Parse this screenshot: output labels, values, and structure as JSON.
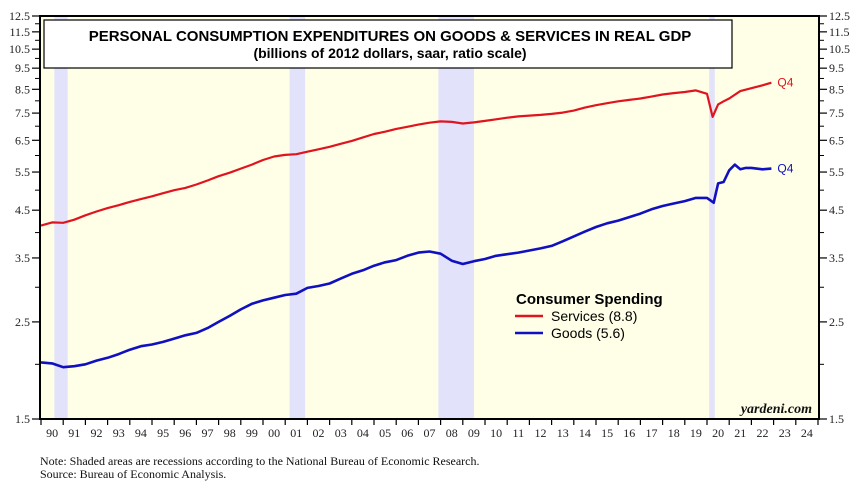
{
  "chart_data": {
    "type": "line",
    "title": "PERSONAL CONSUMPTION EXPENDITURES ON GOODS & SERVICES IN REAL GDP",
    "subtitle": "(billions of 2012 dollars, saar, ratio scale)",
    "xlabel": "",
    "ylabel": "",
    "y_scale": "log",
    "ylim": [
      1.5,
      12.5
    ],
    "xlim": [
      1990,
      2025
    ],
    "y_ticks": [
      "1.5",
      "2.5",
      "3.5",
      "4.5",
      "5.5",
      "6.5",
      "7.5",
      "8.5",
      "9.5",
      "10.5",
      "11.5",
      "12.5"
    ],
    "y_tick_values": [
      1.5,
      2.5,
      3.5,
      4.5,
      5.5,
      6.5,
      7.5,
      8.5,
      9.5,
      10.5,
      11.5,
      12.5
    ],
    "y_minor_ticks": [
      2.0,
      3.0,
      4.0,
      5.0,
      6.0,
      7.0,
      8.0,
      9.0,
      10.0,
      11.0,
      12.0
    ],
    "x_tick_labels": [
      "90",
      "91",
      "92",
      "93",
      "94",
      "95",
      "96",
      "97",
      "98",
      "99",
      "00",
      "01",
      "02",
      "03",
      "04",
      "05",
      "06",
      "07",
      "08",
      "09",
      "10",
      "11",
      "12",
      "13",
      "14",
      "15",
      "16",
      "17",
      "18",
      "19",
      "20",
      "21",
      "22",
      "23",
      "24"
    ],
    "recessions": [
      [
        1990.6,
        1991.2
      ],
      [
        2001.2,
        2001.9
      ],
      [
        2007.9,
        2009.5
      ],
      [
        2020.1,
        2020.35
      ]
    ],
    "grid": false,
    "legend": {
      "title": "Consumer Spending",
      "position": "center-right",
      "entries": [
        "Services (8.8)",
        "Goods (5.6)"
      ]
    },
    "series": [
      {
        "name": "Services (8.8)",
        "color": "#e0141e",
        "end_label": "Q4",
        "x": [
          1990.0,
          1990.5,
          1991.0,
          1991.5,
          1992.0,
          1992.5,
          1993.0,
          1993.5,
          1994.0,
          1994.5,
          1995.0,
          1995.5,
          1996.0,
          1996.5,
          1997.0,
          1997.5,
          1998.0,
          1998.5,
          1999.0,
          1999.5,
          2000.0,
          2000.5,
          2001.0,
          2001.5,
          2002.0,
          2002.5,
          2003.0,
          2003.5,
          2004.0,
          2004.5,
          2005.0,
          2005.5,
          2006.0,
          2006.5,
          2007.0,
          2007.5,
          2008.0,
          2008.5,
          2009.0,
          2009.5,
          2010.0,
          2010.5,
          2011.0,
          2011.5,
          2012.0,
          2012.5,
          2013.0,
          2013.5,
          2014.0,
          2014.5,
          2015.0,
          2015.5,
          2016.0,
          2016.5,
          2017.0,
          2017.5,
          2018.0,
          2018.5,
          2019.0,
          2019.5,
          2020.0,
          2020.25,
          2020.5,
          2020.75,
          2021.0,
          2021.5,
          2022.0,
          2022.5,
          2022.9
        ],
        "values": [
          4.15,
          4.22,
          4.21,
          4.28,
          4.38,
          4.47,
          4.55,
          4.62,
          4.7,
          4.77,
          4.84,
          4.92,
          5.0,
          5.06,
          5.15,
          5.26,
          5.38,
          5.48,
          5.6,
          5.72,
          5.86,
          5.97,
          6.02,
          6.04,
          6.12,
          6.2,
          6.28,
          6.38,
          6.48,
          6.6,
          6.72,
          6.8,
          6.9,
          6.98,
          7.06,
          7.13,
          7.18,
          7.16,
          7.1,
          7.14,
          7.2,
          7.26,
          7.32,
          7.37,
          7.4,
          7.43,
          7.47,
          7.52,
          7.6,
          7.72,
          7.82,
          7.9,
          7.98,
          8.04,
          8.1,
          8.18,
          8.27,
          8.33,
          8.38,
          8.45,
          8.3,
          7.35,
          7.85,
          7.98,
          8.1,
          8.42,
          8.55,
          8.68,
          8.8
        ]
      },
      {
        "name": "Goods (5.6)",
        "color": "#1010c0",
        "end_label": "Q4",
        "x": [
          1990.0,
          1990.5,
          1991.0,
          1991.5,
          1992.0,
          1992.5,
          1993.0,
          1993.5,
          1994.0,
          1994.5,
          1995.0,
          1995.5,
          1996.0,
          1996.5,
          1997.0,
          1997.5,
          1998.0,
          1998.5,
          1999.0,
          1999.5,
          2000.0,
          2000.5,
          2001.0,
          2001.5,
          2002.0,
          2002.5,
          2003.0,
          2003.5,
          2004.0,
          2004.5,
          2005.0,
          2005.5,
          2006.0,
          2006.5,
          2007.0,
          2007.5,
          2008.0,
          2008.5,
          2009.0,
          2009.5,
          2010.0,
          2010.5,
          2011.0,
          2011.5,
          2012.0,
          2012.5,
          2013.0,
          2013.5,
          2014.0,
          2014.5,
          2015.0,
          2015.5,
          2016.0,
          2016.5,
          2017.0,
          2017.5,
          2018.0,
          2018.5,
          2019.0,
          2019.5,
          2020.0,
          2020.3,
          2020.5,
          2020.75,
          2021.0,
          2021.25,
          2021.5,
          2021.75,
          2022.0,
          2022.5,
          2022.9
        ],
        "values": [
          2.02,
          2.01,
          1.97,
          1.98,
          2.0,
          2.04,
          2.07,
          2.11,
          2.16,
          2.2,
          2.22,
          2.25,
          2.29,
          2.33,
          2.36,
          2.42,
          2.5,
          2.58,
          2.67,
          2.75,
          2.8,
          2.84,
          2.88,
          2.9,
          2.99,
          3.02,
          3.06,
          3.14,
          3.22,
          3.28,
          3.36,
          3.42,
          3.46,
          3.54,
          3.6,
          3.62,
          3.58,
          3.45,
          3.39,
          3.44,
          3.48,
          3.54,
          3.57,
          3.6,
          3.64,
          3.68,
          3.73,
          3.82,
          3.92,
          4.02,
          4.12,
          4.2,
          4.26,
          4.34,
          4.42,
          4.52,
          4.6,
          4.66,
          4.72,
          4.8,
          4.8,
          4.68,
          5.18,
          5.22,
          5.55,
          5.72,
          5.58,
          5.62,
          5.62,
          5.58,
          5.6
        ]
      }
    ]
  },
  "watermark": "yardeni.com",
  "footnotes": {
    "note": "Note: Shaded areas are recessions according to the National Bureau of Economic Research.",
    "source": "Source: Bureau of Economic Analysis."
  }
}
